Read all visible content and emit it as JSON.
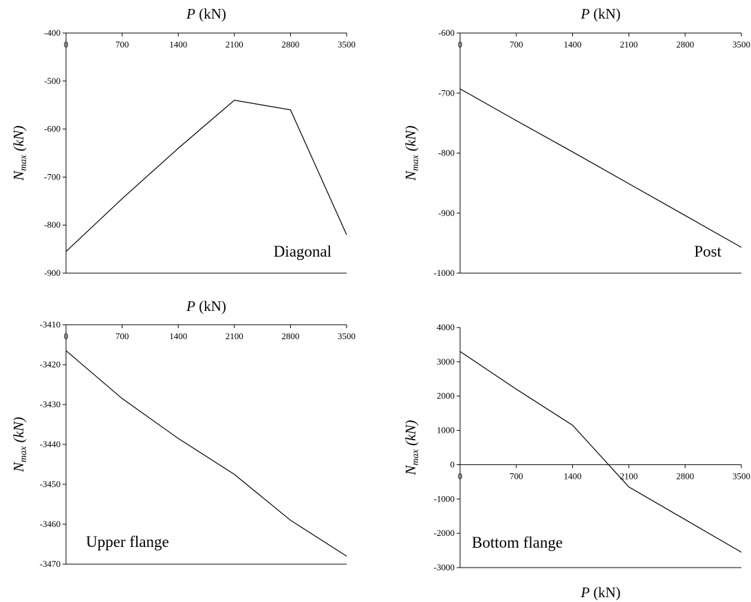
{
  "chart_data": [
    {
      "type": "line",
      "annotation": "Diagonal",
      "xlabel": "P (kN)",
      "xlabel_italic": "P",
      "xlabel_rest": " (kN)",
      "ylabel_main": "N",
      "ylabel_sub": "max",
      "ylabel_rest": " (kN)",
      "x": [
        0,
        700,
        1400,
        2100,
        2800,
        3500
      ],
      "values": [
        -855,
        -745,
        -640,
        -540,
        -560,
        -820
      ],
      "xlim": [
        0,
        3500
      ],
      "ylim": [
        -900,
        -400
      ],
      "xticks": [
        0,
        700,
        1400,
        2100,
        2800,
        3500
      ],
      "yticks": [
        -900,
        -800,
        -700,
        -600,
        -500,
        -400
      ],
      "x_axis_at_y": -400,
      "xlabel_position": "top",
      "annotation_position": "bottom-right",
      "grid": false
    },
    {
      "type": "line",
      "annotation": "Post",
      "xlabel": "P (kN)",
      "xlabel_italic": "P",
      "xlabel_rest": " (kN)",
      "ylabel_main": "N",
      "ylabel_sub": "max",
      "ylabel_rest": " (kN)",
      "x": [
        0,
        700,
        1400,
        2100,
        2800,
        3500
      ],
      "values": [
        -693,
        -746,
        -798,
        -851,
        -904,
        -957
      ],
      "xlim": [
        0,
        3500
      ],
      "ylim": [
        -1000,
        -600
      ],
      "xticks": [
        0,
        700,
        1400,
        2100,
        2800,
        3500
      ],
      "yticks": [
        -1000,
        -900,
        -800,
        -700,
        -600
      ],
      "x_axis_at_y": -600,
      "xlabel_position": "top",
      "annotation_position": "bottom-right",
      "grid": false
    },
    {
      "type": "line",
      "annotation": "Upper flange",
      "xlabel": "P (kN)",
      "xlabel_italic": "P",
      "xlabel_rest": " (kN)",
      "ylabel_main": "N",
      "ylabel_sub": "max",
      "ylabel_rest": " (kN)",
      "x": [
        0,
        700,
        1400,
        2100,
        2800,
        3500
      ],
      "values": [
        -3416.5,
        -3428.5,
        -3438.5,
        -3447.5,
        -3459,
        -3468
      ],
      "xlim": [
        0,
        3500
      ],
      "ylim": [
        -3470,
        -3410
      ],
      "xticks": [
        0,
        700,
        1400,
        2100,
        2800,
        3500
      ],
      "yticks": [
        -3470,
        -3460,
        -3450,
        -3440,
        -3430,
        -3420,
        -3410
      ],
      "x_axis_at_y": -3410,
      "xlabel_position": "top",
      "annotation_position": "bottom-left",
      "grid": false
    },
    {
      "type": "line",
      "annotation": "Bottom flange",
      "xlabel": "P (kN)",
      "xlabel_italic": "P",
      "xlabel_rest": " (kN)",
      "ylabel_main": "N",
      "ylabel_sub": "max",
      "ylabel_rest": " (kN)",
      "x": [
        0,
        700,
        1400,
        2100,
        2800,
        3500
      ],
      "values": [
        3300,
        2200,
        1150,
        -650,
        -1600,
        -2550
      ],
      "xlim": [
        0,
        3500
      ],
      "ylim": [
        -3000,
        4000
      ],
      "xticks": [
        0,
        700,
        1400,
        2100,
        2800,
        3500
      ],
      "yticks": [
        -3000,
        -2000,
        -1000,
        0,
        1000,
        2000,
        3000,
        4000
      ],
      "x_axis_at_y": 0,
      "xlabel_position": "bottom",
      "annotation_position": "bottom-left",
      "grid": false
    }
  ]
}
